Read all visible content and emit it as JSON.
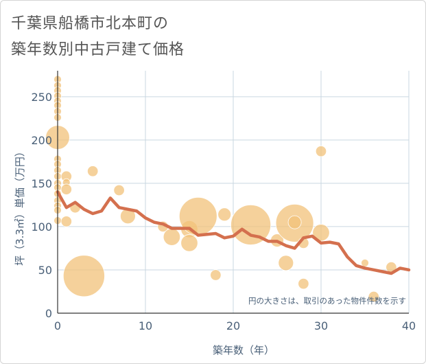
{
  "chart_data": {
    "type": "scatter",
    "title": "千葉県船橋市北本町の築年数別中古戸建て価格",
    "title_lines": [
      "千葉県船橋市北本町の",
      "築年数別中古戸建て価格"
    ],
    "xlabel": "築年数（年）",
    "ylabel": "坪（3.3㎡）単価（万円）",
    "xlim": [
      0,
      40
    ],
    "ylim": [
      0,
      280
    ],
    "x_ticks": [
      0,
      10,
      20,
      30,
      40
    ],
    "y_ticks": [
      0,
      50,
      100,
      150,
      200,
      250
    ],
    "grid": true,
    "note": "円の大きさは、取引のあった物件件数を示す",
    "colors": {
      "bubble": "#f2c27a",
      "line": "#d4704e",
      "grid": "#c9d7e0",
      "text": "#4a6078"
    },
    "bubbles": [
      {
        "x": 0,
        "y": 270,
        "size": 1
      },
      {
        "x": 0,
        "y": 263,
        "size": 1
      },
      {
        "x": 0,
        "y": 257,
        "size": 1
      },
      {
        "x": 0,
        "y": 251,
        "size": 1
      },
      {
        "x": 0,
        "y": 245,
        "size": 1
      },
      {
        "x": 0,
        "y": 240,
        "size": 1
      },
      {
        "x": 0,
        "y": 233,
        "size": 1
      },
      {
        "x": 0,
        "y": 226,
        "size": 1
      },
      {
        "x": 0,
        "y": 203,
        "size": 10
      },
      {
        "x": 0,
        "y": 178,
        "size": 1
      },
      {
        "x": 0,
        "y": 172,
        "size": 1
      },
      {
        "x": 0,
        "y": 165,
        "size": 1
      },
      {
        "x": 0,
        "y": 158,
        "size": 1
      },
      {
        "x": 0,
        "y": 150,
        "size": 1
      },
      {
        "x": 0,
        "y": 145,
        "size": 1
      },
      {
        "x": 0,
        "y": 138,
        "size": 1
      },
      {
        "x": 0,
        "y": 130,
        "size": 1
      },
      {
        "x": 0,
        "y": 124,
        "size": 1
      },
      {
        "x": 0,
        "y": 119,
        "size": 1
      },
      {
        "x": 0,
        "y": 107,
        "size": 1
      },
      {
        "x": 1,
        "y": 158,
        "size": 2
      },
      {
        "x": 1,
        "y": 151,
        "size": 1
      },
      {
        "x": 1,
        "y": 143,
        "size": 2
      },
      {
        "x": 1,
        "y": 106,
        "size": 2
      },
      {
        "x": 2,
        "y": 122,
        "size": 2
      },
      {
        "x": 3,
        "y": 43,
        "size": 30
      },
      {
        "x": 4,
        "y": 164,
        "size": 2
      },
      {
        "x": 7,
        "y": 142,
        "size": 2
      },
      {
        "x": 8,
        "y": 112,
        "size": 4
      },
      {
        "x": 12,
        "y": 100,
        "size": 2
      },
      {
        "x": 13,
        "y": 88,
        "size": 5
      },
      {
        "x": 15,
        "y": 97,
        "size": 5
      },
      {
        "x": 15,
        "y": 81,
        "size": 5
      },
      {
        "x": 16,
        "y": 112,
        "size": 25
      },
      {
        "x": 18,
        "y": 44,
        "size": 2
      },
      {
        "x": 19,
        "y": 114,
        "size": 3
      },
      {
        "x": 22,
        "y": 102,
        "size": 28
      },
      {
        "x": 25,
        "y": 84,
        "size": 3
      },
      {
        "x": 26,
        "y": 58,
        "size": 4
      },
      {
        "x": 27,
        "y": 104,
        "size": 25
      },
      {
        "x": 27,
        "y": 105,
        "size": 3
      },
      {
        "x": 28,
        "y": 81,
        "size": 2
      },
      {
        "x": 28,
        "y": 34,
        "size": 2
      },
      {
        "x": 30,
        "y": 187,
        "size": 2
      },
      {
        "x": 30,
        "y": 93,
        "size": 5
      },
      {
        "x": 35,
        "y": 58,
        "size": 1
      },
      {
        "x": 36,
        "y": 19,
        "size": 2
      },
      {
        "x": 38,
        "y": 53,
        "size": 2
      }
    ],
    "trend": {
      "x": [
        0,
        1,
        2,
        3,
        4,
        5,
        6,
        7,
        8,
        9,
        10,
        11,
        12,
        13,
        14,
        15,
        16,
        17,
        18,
        19,
        20,
        21,
        22,
        23,
        24,
        25,
        26,
        27,
        28,
        29,
        30,
        31,
        32,
        33,
        34,
        35,
        36,
        37,
        38,
        39,
        40
      ],
      "y": [
        140,
        122,
        128,
        120,
        115,
        118,
        133,
        122,
        120,
        118,
        110,
        105,
        103,
        98,
        98,
        98,
        90,
        91,
        92,
        87,
        89,
        97,
        90,
        88,
        83,
        83,
        78,
        75,
        87,
        89,
        81,
        82,
        80,
        65,
        55,
        52,
        50,
        48,
        46,
        52,
        50
      ]
    }
  }
}
